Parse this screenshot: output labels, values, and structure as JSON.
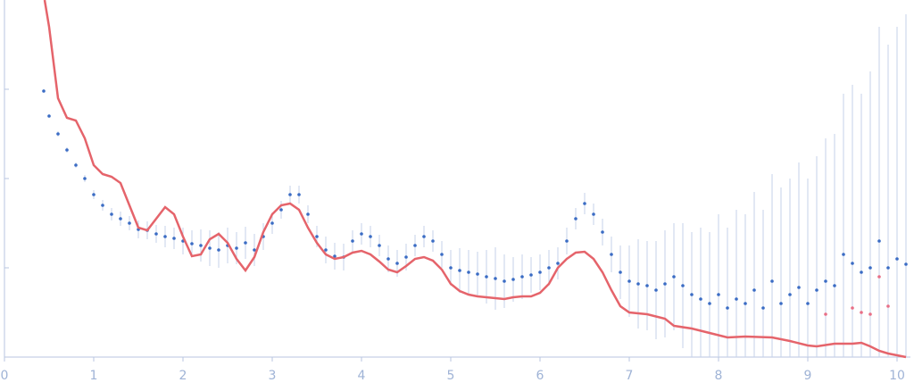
{
  "chart_data": {
    "type": "scatter",
    "xlim": [
      0,
      10.15
    ],
    "ylim": [
      0,
      4
    ],
    "xticks": [
      0,
      1,
      2,
      3,
      4,
      5,
      6,
      7,
      8,
      9,
      10
    ],
    "yticks": [
      1,
      2,
      3
    ],
    "series": [
      {
        "color": "#3b6cc4",
        "x": [
          0.44,
          0.5,
          0.6,
          0.7,
          0.8,
          0.9,
          1.0,
          1.1,
          1.2,
          1.3,
          1.4,
          1.5,
          1.6,
          1.7,
          1.8,
          1.9,
          2.0,
          2.1,
          2.2,
          2.3,
          2.4,
          2.5,
          2.6,
          2.7,
          2.8,
          2.9,
          3.0,
          3.1,
          3.2,
          3.3,
          3.4,
          3.5,
          3.6,
          3.7,
          3.8,
          3.9,
          4.0,
          4.1,
          4.2,
          4.3,
          4.4,
          4.5,
          4.6,
          4.7,
          4.8,
          4.9,
          5.0,
          5.1,
          5.2,
          5.3,
          5.4,
          5.5,
          5.6,
          5.7,
          5.8,
          5.9,
          6.0,
          6.1,
          6.2,
          6.3,
          6.4,
          6.5,
          6.6,
          6.7,
          6.8,
          6.9,
          7.0,
          7.1,
          7.2,
          7.3,
          7.4,
          7.5,
          7.6,
          7.7,
          7.8,
          7.9,
          8.0,
          8.1,
          8.2,
          8.3,
          8.4,
          8.5,
          8.6,
          8.7,
          8.8,
          8.9,
          9.0,
          9.1,
          9.2,
          9.3,
          9.4,
          9.5,
          9.6,
          9.7,
          9.8,
          9.9,
          10.0,
          10.1
        ],
        "values": [
          2.98,
          2.7,
          2.5,
          2.32,
          2.15,
          2.0,
          1.82,
          1.7,
          1.6,
          1.55,
          1.5,
          1.43,
          1.42,
          1.38,
          1.35,
          1.33,
          1.3,
          1.27,
          1.25,
          1.22,
          1.2,
          1.25,
          1.22,
          1.28,
          1.2,
          1.35,
          1.5,
          1.65,
          1.82,
          1.82,
          1.6,
          1.35,
          1.2,
          1.13,
          1.12,
          1.3,
          1.38,
          1.35,
          1.25,
          1.1,
          1.05,
          1.12,
          1.25,
          1.35,
          1.3,
          1.15,
          1.0,
          0.97,
          0.95,
          0.93,
          0.9,
          0.88,
          0.85,
          0.87,
          0.9,
          0.92,
          0.95,
          1.0,
          1.05,
          1.3,
          1.55,
          1.72,
          1.6,
          1.4,
          1.15,
          0.95,
          0.85,
          0.82,
          0.8,
          0.75,
          0.82,
          0.9,
          0.8,
          0.7,
          0.65,
          0.6,
          0.7,
          0.55,
          0.65,
          0.6,
          0.75,
          0.55,
          0.85,
          0.6,
          0.7,
          0.78,
          0.6,
          0.75,
          0.85,
          0.8,
          1.15,
          1.05,
          0.95,
          1.0,
          1.3,
          1.0,
          1.1,
          1.04
        ],
        "errors": [
          0.02,
          0.02,
          0.03,
          0.03,
          0.03,
          0.04,
          0.05,
          0.06,
          0.07,
          0.08,
          0.08,
          0.1,
          0.1,
          0.1,
          0.12,
          0.12,
          0.15,
          0.15,
          0.18,
          0.2,
          0.2,
          0.2,
          0.18,
          0.18,
          0.18,
          0.15,
          0.12,
          0.1,
          0.1,
          0.1,
          0.1,
          0.12,
          0.15,
          0.15,
          0.15,
          0.12,
          0.12,
          0.12,
          0.12,
          0.15,
          0.15,
          0.15,
          0.12,
          0.12,
          0.12,
          0.15,
          0.2,
          0.25,
          0.25,
          0.25,
          0.3,
          0.35,
          0.3,
          0.25,
          0.25,
          0.2,
          0.2,
          0.2,
          0.18,
          0.15,
          0.12,
          0.12,
          0.12,
          0.15,
          0.2,
          0.3,
          0.4,
          0.5,
          0.5,
          0.55,
          0.6,
          0.6,
          0.7,
          0.7,
          0.8,
          0.8,
          0.9,
          0.9,
          1.0,
          1.0,
          1.1,
          1.1,
          1.2,
          1.3,
          1.3,
          1.4,
          1.4,
          1.5,
          1.6,
          1.7,
          1.8,
          2.0,
          2.0,
          2.2,
          2.4,
          2.5,
          2.6,
          2.8
        ]
      },
      {
        "color": "#e86f86",
        "x": [
          9.2,
          9.5,
          9.6,
          9.7,
          9.8,
          9.9
        ],
        "values": [
          0.48,
          0.55,
          0.5,
          0.48,
          0.9,
          0.57
        ]
      },
      {
        "color": "#e5646b",
        "line": true,
        "x": [
          0.45,
          0.5,
          0.6,
          0.7,
          0.8,
          0.9,
          1.0,
          1.1,
          1.2,
          1.3,
          1.4,
          1.5,
          1.6,
          1.7,
          1.8,
          1.9,
          2.0,
          2.1,
          2.2,
          2.3,
          2.4,
          2.5,
          2.6,
          2.7,
          2.8,
          2.9,
          3.0,
          3.1,
          3.2,
          3.3,
          3.4,
          3.5,
          3.6,
          3.7,
          3.8,
          3.9,
          4.0,
          4.1,
          4.2,
          4.3,
          4.4,
          4.5,
          4.6,
          4.7,
          4.8,
          4.9,
          5.0,
          5.1,
          5.2,
          5.3,
          5.4,
          5.5,
          5.6,
          5.7,
          5.8,
          5.9,
          6.0,
          6.1,
          6.2,
          6.3,
          6.4,
          6.5,
          6.6,
          6.7,
          6.8,
          6.9,
          7.0,
          7.2,
          7.4,
          7.5,
          7.7,
          7.9,
          8.1,
          8.3,
          8.6,
          8.8,
          9.0,
          9.1,
          9.3,
          9.5,
          9.6,
          9.7,
          9.8,
          9.9,
          10.0,
          10.1
        ],
        "values": [
          4.0,
          3.7,
          2.9,
          2.68,
          2.65,
          2.45,
          2.15,
          2.05,
          2.02,
          1.95,
          1.7,
          1.45,
          1.42,
          1.55,
          1.68,
          1.6,
          1.35,
          1.13,
          1.15,
          1.32,
          1.38,
          1.28,
          1.1,
          0.97,
          1.12,
          1.4,
          1.6,
          1.7,
          1.72,
          1.65,
          1.45,
          1.28,
          1.15,
          1.1,
          1.12,
          1.17,
          1.19,
          1.15,
          1.07,
          0.98,
          0.95,
          1.02,
          1.1,
          1.12,
          1.08,
          0.98,
          0.82,
          0.74,
          0.7,
          0.68,
          0.67,
          0.66,
          0.65,
          0.67,
          0.68,
          0.68,
          0.72,
          0.82,
          1.0,
          1.1,
          1.17,
          1.18,
          1.1,
          0.95,
          0.75,
          0.57,
          0.5,
          0.48,
          0.43,
          0.35,
          0.32,
          0.27,
          0.22,
          0.23,
          0.22,
          0.18,
          0.13,
          0.12,
          0.15,
          0.15,
          0.16,
          0.12,
          0.07,
          0.04,
          0.02,
          0.0
        ]
      }
    ]
  }
}
